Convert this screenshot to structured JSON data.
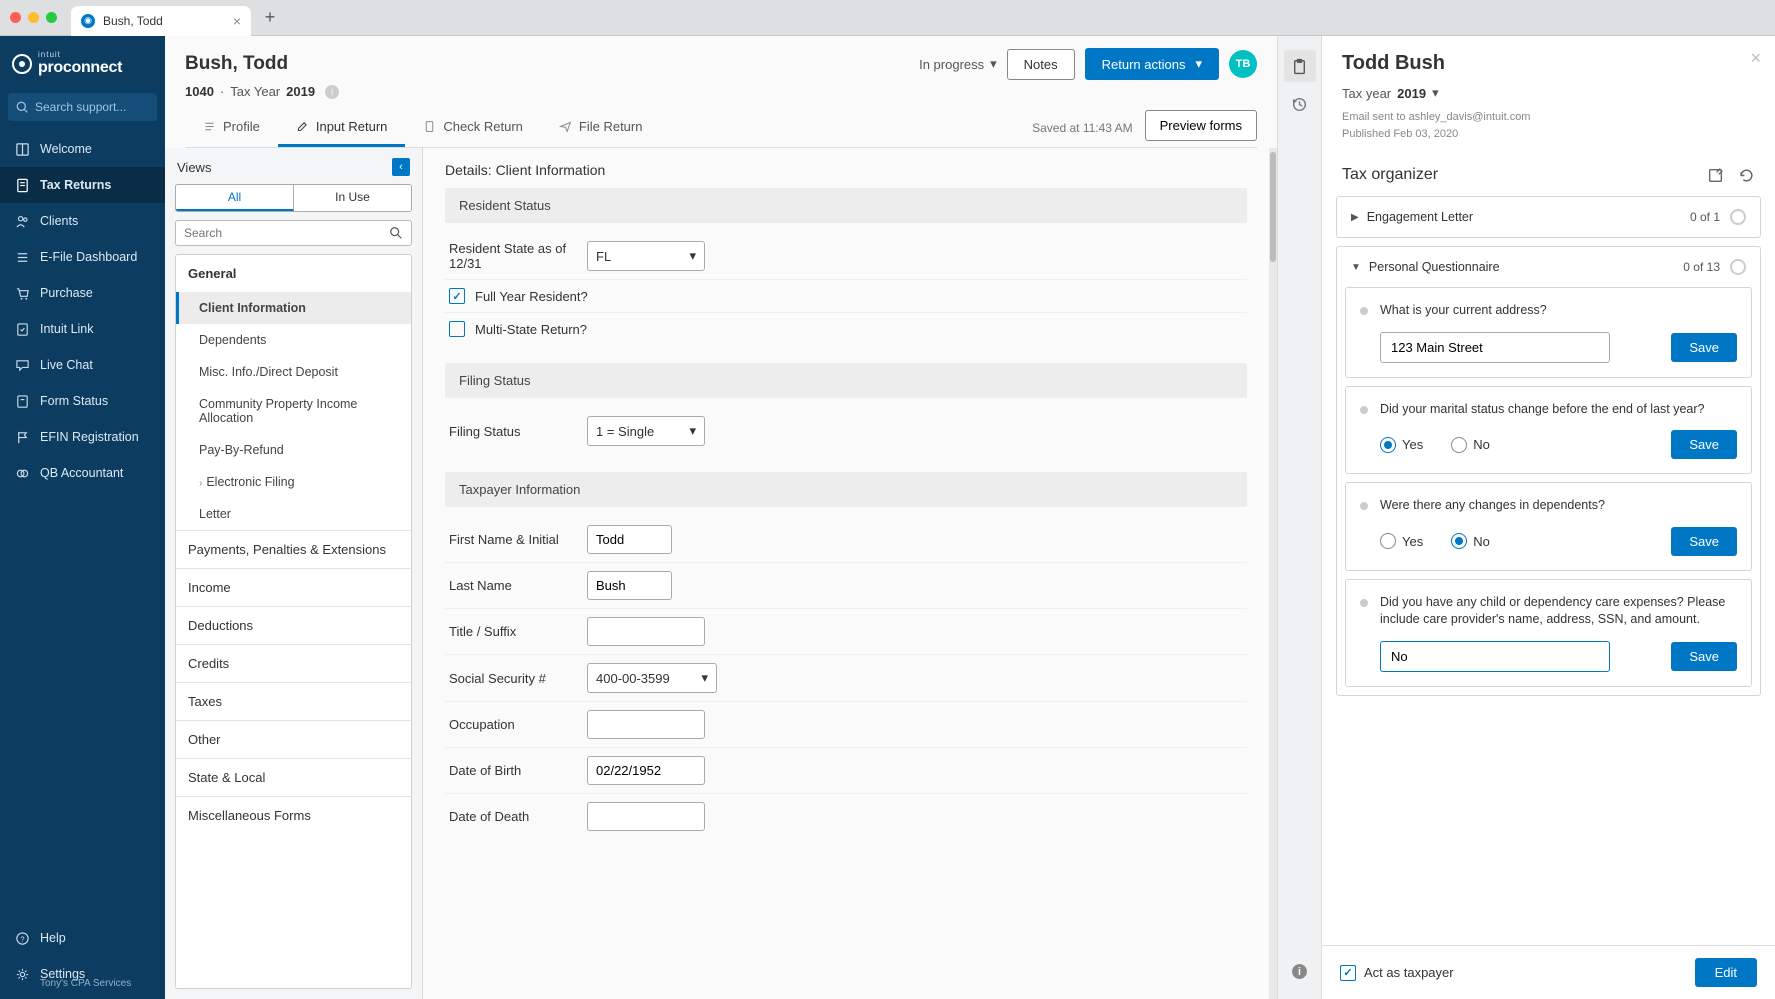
{
  "browser": {
    "tab_title": "Bush, Todd"
  },
  "brand": {
    "top": "intuit",
    "name": "proconnect"
  },
  "search_support_placeholder": "Search support...",
  "sidebar": {
    "items": [
      {
        "label": "Welcome",
        "icon": "book"
      },
      {
        "label": "Tax Returns",
        "icon": "document",
        "active": true
      },
      {
        "label": "Clients",
        "icon": "people"
      },
      {
        "label": "E-File Dashboard",
        "icon": "list"
      },
      {
        "label": "Purchase",
        "icon": "cart"
      },
      {
        "label": "Intuit Link",
        "icon": "link"
      },
      {
        "label": "Live Chat",
        "icon": "chat"
      },
      {
        "label": "Form Status",
        "icon": "status"
      },
      {
        "label": "EFIN Registration",
        "icon": "flag"
      },
      {
        "label": "QB Accountant",
        "icon": "qb"
      }
    ],
    "help": "Help",
    "settings": "Settings",
    "settings_sub": "Tony's CPA Services"
  },
  "header": {
    "client_name": "Bush, Todd",
    "form_type": "1040",
    "tax_year_label": "Tax Year",
    "tax_year": "2019",
    "status": "In progress",
    "notes_btn": "Notes",
    "return_actions_btn": "Return actions",
    "avatar": "TB",
    "tabs": [
      {
        "label": "Profile",
        "icon": "profile"
      },
      {
        "label": "Input Return",
        "icon": "pencil",
        "active": true
      },
      {
        "label": "Check Return",
        "icon": "doc"
      },
      {
        "label": "File Return",
        "icon": "send"
      }
    ],
    "saved": "Saved at 11:43 AM",
    "preview_btn": "Preview forms"
  },
  "views": {
    "title": "Views",
    "tabs": [
      "All",
      "In Use"
    ],
    "active_tab": 0,
    "search_placeholder": "Search",
    "tree": {
      "general": {
        "label": "General",
        "items": [
          "Client Information",
          "Dependents",
          "Misc. Info./Direct Deposit",
          "Community Property Income Allocation",
          "Pay-By-Refund",
          "Electronic Filing",
          "Letter"
        ],
        "active": 0
      },
      "groups": [
        "Payments, Penalties & Extensions",
        "Income",
        "Deductions",
        "Credits",
        "Taxes",
        "Other",
        "State & Local",
        "Miscellaneous Forms"
      ]
    }
  },
  "details": {
    "title": "Details: Client Information",
    "sections": {
      "resident": {
        "head": "Resident Status",
        "state_label": "Resident State as of 12/31",
        "state_value": "FL",
        "full_year": "Full Year Resident?",
        "full_year_checked": true,
        "multi_state": "Multi-State Return?",
        "multi_state_checked": false
      },
      "filing": {
        "head": "Filing Status",
        "label": "Filing Status",
        "value": "1 = Single"
      },
      "taxpayer": {
        "head": "Taxpayer Information",
        "rows": [
          {
            "label": "First Name & Initial",
            "value": "Todd",
            "type": "text"
          },
          {
            "label": "Last Name",
            "value": "Bush",
            "type": "text"
          },
          {
            "label": "Title / Suffix",
            "value": "",
            "type": "text"
          },
          {
            "label": "Social Security #",
            "value": "400-00-3599",
            "type": "select"
          },
          {
            "label": "Occupation",
            "value": "",
            "type": "text"
          },
          {
            "label": "Date of Birth",
            "value": "02/22/1952",
            "type": "text"
          },
          {
            "label": "Date of Death",
            "value": "",
            "type": "text"
          }
        ]
      }
    }
  },
  "right_panel": {
    "name": "Todd Bush",
    "year_label": "Tax year",
    "year": "2019",
    "meta1": "Email sent to ashley_davis@intuit.com",
    "meta2": "Published Feb 03, 2020",
    "organizer_title": "Tax organizer",
    "engagement": {
      "label": "Engagement Letter",
      "count": "0 of 1"
    },
    "questionnaire": {
      "label": "Personal Questionnaire",
      "count": "0 of 13"
    },
    "questions": [
      {
        "text": "What is your current address?",
        "type": "input",
        "value": "123 Main Street",
        "save": "Save"
      },
      {
        "text": "Did your marital status change before the end of last year?",
        "type": "radio",
        "options": [
          "Yes",
          "No"
        ],
        "selected": 0,
        "save": "Save"
      },
      {
        "text": "Were there any changes in dependents?",
        "type": "radio",
        "options": [
          "Yes",
          "No"
        ],
        "selected": 1,
        "save": "Save"
      },
      {
        "text": "Did you have any child or dependency care expenses? Please include care provider's name, address, SSN, and amount.",
        "type": "input",
        "value": "No",
        "focused": true,
        "save": "Save"
      }
    ],
    "act_as": "Act as taxpayer",
    "edit": "Edit"
  },
  "colors": {
    "sidebar_bg": "#0d3c61",
    "sidebar_active": "#0a2d47",
    "primary": "#0077c5",
    "avatar": "#00c1bf",
    "section_bg": "#ededed"
  }
}
